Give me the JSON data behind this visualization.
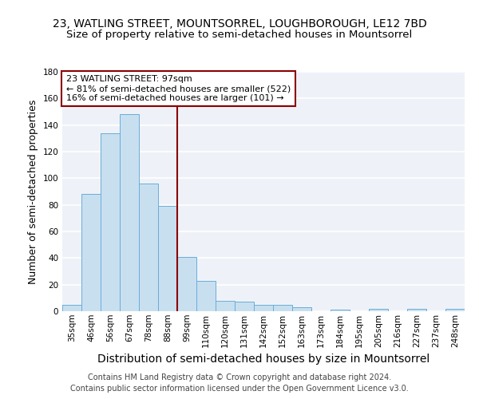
{
  "title": "23, WATLING STREET, MOUNTSORREL, LOUGHBOROUGH, LE12 7BD",
  "subtitle": "Size of property relative to semi-detached houses in Mountsorrel",
  "xlabel": "Distribution of semi-detached houses by size in Mountsorrel",
  "ylabel": "Number of semi-detached properties",
  "categories": [
    "35sqm",
    "46sqm",
    "56sqm",
    "67sqm",
    "78sqm",
    "88sqm",
    "99sqm",
    "110sqm",
    "120sqm",
    "131sqm",
    "142sqm",
    "152sqm",
    "163sqm",
    "173sqm",
    "184sqm",
    "195sqm",
    "205sqm",
    "216sqm",
    "227sqm",
    "237sqm",
    "248sqm"
  ],
  "values": [
    5,
    88,
    134,
    148,
    96,
    79,
    41,
    23,
    8,
    7,
    5,
    5,
    3,
    0,
    1,
    0,
    2,
    0,
    2,
    0,
    2
  ],
  "bar_color": "#c8dff0",
  "bar_edge_color": "#6aaed6",
  "property_line_color": "#8b0000",
  "annotation_title": "23 WATLING STREET: 97sqm",
  "annotation_line1": "← 81% of semi-detached houses are smaller (522)",
  "annotation_line2": "16% of semi-detached houses are larger (101) →",
  "annotation_box_color": "#8b0000",
  "footer_line1": "Contains HM Land Registry data © Crown copyright and database right 2024.",
  "footer_line2": "Contains public sector information licensed under the Open Government Licence v3.0.",
  "ylim": [
    0,
    180
  ],
  "background_color": "#eef2f8",
  "grid_color": "#ffffff",
  "title_fontsize": 10,
  "subtitle_fontsize": 9.5,
  "axis_label_fontsize": 9,
  "xlabel_fontsize": 10,
  "tick_fontsize": 7.5,
  "footer_fontsize": 7,
  "annotation_fontsize": 8
}
